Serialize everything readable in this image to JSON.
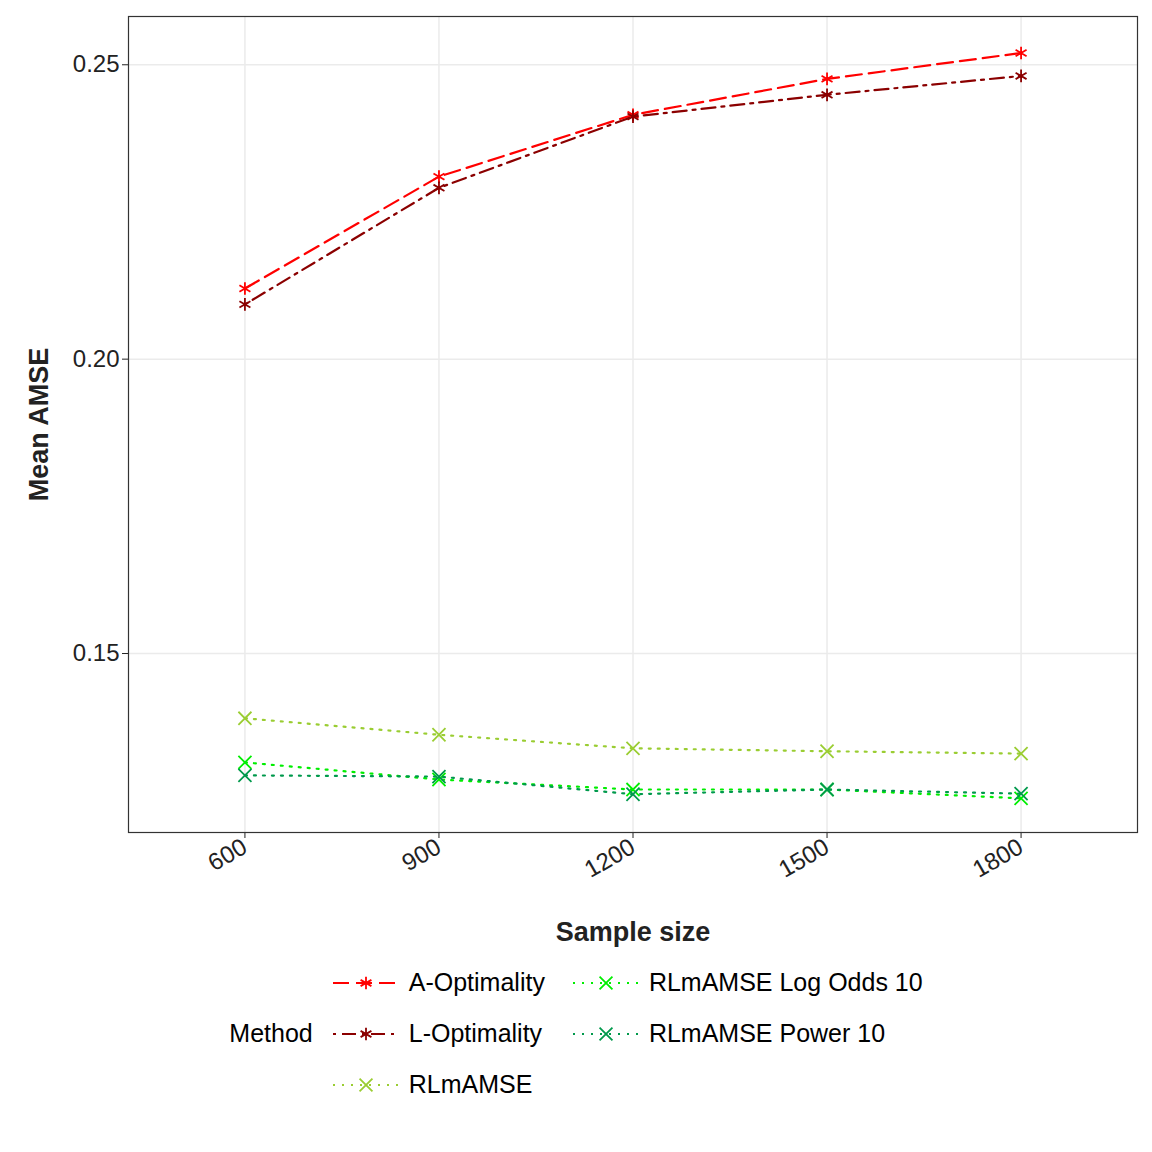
{
  "chart_data": {
    "type": "line",
    "x_label": "Sample size",
    "y_label": "Mean AMSE",
    "legend_title": "Method",
    "legend": "bottom",
    "grid": true,
    "x": [
      600,
      900,
      1200,
      1500,
      1800
    ],
    "xlim": [
      420,
      1980
    ],
    "xticks": [
      600,
      900,
      1200,
      1500,
      1800
    ],
    "ylim": [
      0.1196,
      0.2582
    ],
    "yticks": [
      {
        "value": 0.15,
        "label": "0.15"
      },
      {
        "value": 0.2,
        "label": "0.20"
      },
      {
        "value": 0.25,
        "label": "0.25"
      }
    ],
    "series": [
      {
        "name": "A-Optimality",
        "color": "#ff0000",
        "marker": "asterisk",
        "line_style": "dashed",
        "values": [
          0.212,
          0.231,
          0.2415,
          0.2476,
          0.252
        ]
      },
      {
        "name": "L-Optimality",
        "color": "#8b0000",
        "marker": "asterisk",
        "line_style": "dotdash",
        "values": [
          0.2093,
          0.2291,
          0.2412,
          0.2449,
          0.2481
        ]
      },
      {
        "name": "RLmAMSE",
        "color": "#9acd32",
        "marker": "times",
        "line_style": "dotted",
        "values": [
          0.139,
          0.1362,
          0.1339,
          0.1334,
          0.133
        ]
      },
      {
        "name": "RLmAMSE Log Odds 10",
        "color": "#00ee00",
        "marker": "times",
        "line_style": "dotted",
        "values": [
          0.1315,
          0.1286,
          0.1269,
          0.1269,
          0.1254
        ]
      },
      {
        "name": "RLmAMSE Power 10",
        "color": "#00994c",
        "marker": "times",
        "line_style": "dotted",
        "values": [
          0.1293,
          0.1291,
          0.1261,
          0.1269,
          0.1262
        ]
      }
    ]
  }
}
